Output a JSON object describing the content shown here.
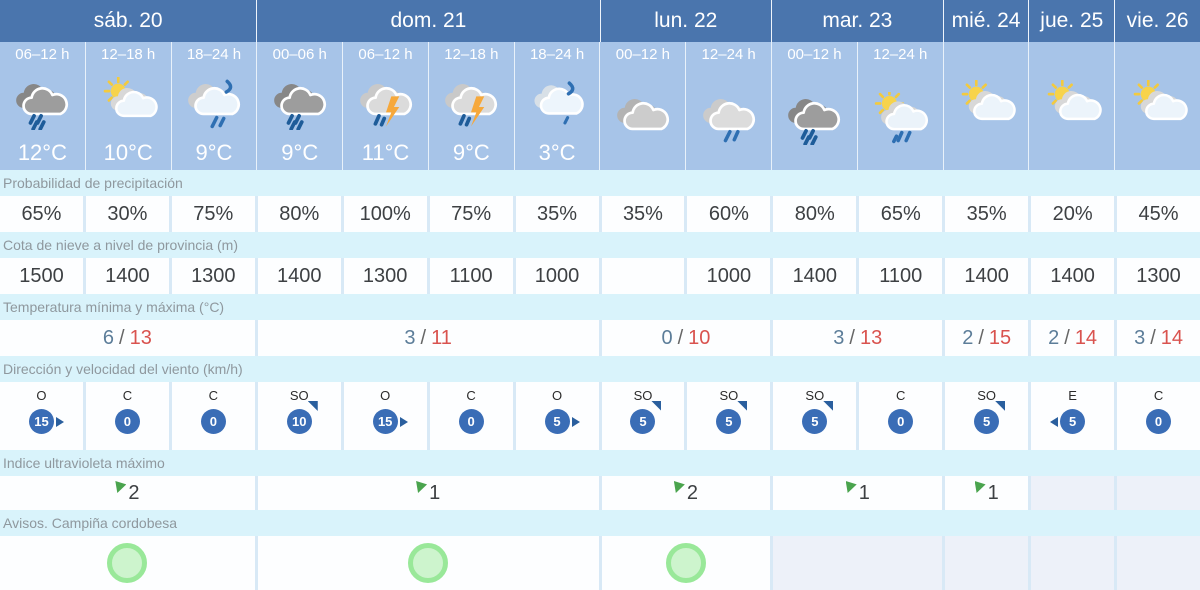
{
  "colors": {
    "header_blue": "#4a75ad",
    "icon_cell_blue": "#a7c4e8",
    "band_cyan": "#d9f3fb",
    "band_text": "#8f989e",
    "cell_gap": "#d8e9f6",
    "value_text": "#3d4043",
    "empty_cell": "#edf1f9",
    "wind_circle_blue": "#3a6db6",
    "wind_arrow_blue": "#2a5f9e",
    "temp_min_blue": "#5c7d99",
    "temp_max_red": "#d9534f",
    "uv_green": "#4aa44e",
    "warning_fill_green": "#cdf4cd",
    "warning_border_green": "#99e899",
    "rain_blue": "#2e6fb2",
    "rain_dark_blue": "#1e5c99",
    "bolt_orange": "#f6a83b",
    "sun_yellow": "#f7d34b"
  },
  "labels": {
    "precip": "Probabilidad de precipitación",
    "snow": "Cota de nieve a nivel de provincia (m)",
    "temp": "Temperatura mínima y máxima (°C)",
    "wind": "Dirección y velocidad del viento (km/h)",
    "uv": "Indice ultravioleta máximo",
    "warn": "Avisos. Campiña cordobesa",
    "temp_separator": "/"
  },
  "days": [
    {
      "label": "sáb. 20",
      "cols": 3
    },
    {
      "label": "dom. 21",
      "cols": 4
    },
    {
      "label": "lun. 22",
      "cols": 2
    },
    {
      "label": "mar. 23",
      "cols": 2
    },
    {
      "label": "mié. 24",
      "cols": 1
    },
    {
      "label": "jue. 25",
      "cols": 1
    },
    {
      "label": "vie. 26",
      "cols": 1
    }
  ],
  "columns": [
    {
      "time": "06–12 h",
      "icon": "heavy-rain",
      "temp": "12°C",
      "precip": "65%",
      "snow": "1500",
      "wind": {
        "dir": "O",
        "speed": "15"
      }
    },
    {
      "time": "12–18 h",
      "icon": "sun-cloud",
      "temp": "10°C",
      "precip": "30%",
      "snow": "1400",
      "wind": {
        "dir": "C",
        "speed": "0"
      }
    },
    {
      "time": "18–24 h",
      "icon": "shower",
      "temp": "9°C",
      "precip": "75%",
      "snow": "1300",
      "wind": {
        "dir": "C",
        "speed": "0"
      }
    },
    {
      "time": "00–06 h",
      "icon": "heavy-rain",
      "temp": "9°C",
      "precip": "80%",
      "snow": "1400",
      "wind": {
        "dir": "SO",
        "speed": "10"
      }
    },
    {
      "time": "06–12 h",
      "icon": "storm",
      "temp": "11°C",
      "precip": "100%",
      "snow": "1300",
      "wind": {
        "dir": "O",
        "speed": "15"
      }
    },
    {
      "time": "12–18 h",
      "icon": "storm",
      "temp": "9°C",
      "precip": "75%",
      "snow": "1100",
      "wind": {
        "dir": "C",
        "speed": "0"
      }
    },
    {
      "time": "18–24 h",
      "icon": "drizzle",
      "temp": "3°C",
      "precip": "35%",
      "snow": "1000",
      "wind": {
        "dir": "O",
        "speed": "5"
      }
    },
    {
      "time": "00–12 h",
      "icon": "cloudy",
      "temp": "",
      "precip": "35%",
      "snow": "",
      "wind": {
        "dir": "SO",
        "speed": "5"
      }
    },
    {
      "time": "12–24 h",
      "icon": "rain",
      "temp": "",
      "precip": "60%",
      "snow": "1000",
      "wind": {
        "dir": "SO",
        "speed": "5"
      }
    },
    {
      "time": "00–12 h",
      "icon": "heavy-rain",
      "temp": "",
      "precip": "80%",
      "snow": "1400",
      "wind": {
        "dir": "SO",
        "speed": "5"
      }
    },
    {
      "time": "12–24 h",
      "icon": "sun-cloud-rain",
      "temp": "",
      "precip": "65%",
      "snow": "1100",
      "wind": {
        "dir": "C",
        "speed": "0"
      }
    },
    {
      "time": "",
      "icon": "sun-cloud",
      "temp": "",
      "precip": "35%",
      "snow": "1400",
      "wind": {
        "dir": "SO",
        "speed": "5"
      }
    },
    {
      "time": "",
      "icon": "sun-cloud",
      "temp": "",
      "precip": "20%",
      "snow": "1400",
      "wind": {
        "dir": "E",
        "speed": "5"
      }
    },
    {
      "time": "",
      "icon": "sun-cloud",
      "temp": "",
      "precip": "45%",
      "snow": "1300",
      "wind": {
        "dir": "C",
        "speed": "0"
      }
    }
  ],
  "day_summary": [
    {
      "temp_min": "6",
      "temp_max": "13",
      "uv": "2",
      "warning": true
    },
    {
      "temp_min": "3",
      "temp_max": "11",
      "uv": "1",
      "warning": true
    },
    {
      "temp_min": "0",
      "temp_max": "10",
      "uv": "2",
      "warning": true
    },
    {
      "temp_min": "3",
      "temp_max": "13",
      "uv": "1",
      "warning": false
    },
    {
      "temp_min": "2",
      "temp_max": "15",
      "uv": "1",
      "warning": false
    },
    {
      "temp_min": "2",
      "temp_max": "14",
      "uv": "",
      "warning": false
    },
    {
      "temp_min": "3",
      "temp_max": "14",
      "uv": "",
      "warning": false
    }
  ]
}
